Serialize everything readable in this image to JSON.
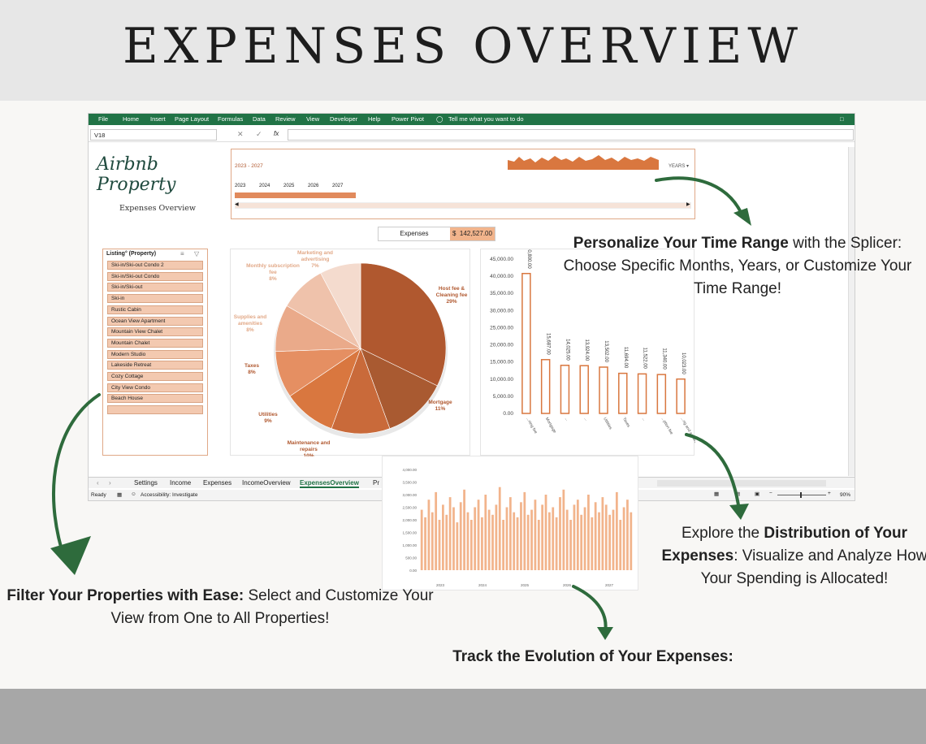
{
  "title": "EXPENSES OVERVIEW",
  "ribbon": {
    "tabs": [
      "File",
      "Home",
      "Insert",
      "Page Layout",
      "Formulas",
      "Data",
      "Review",
      "View",
      "Developer",
      "Help",
      "Power Pivot"
    ],
    "tell_me": "Tell me what you want to do"
  },
  "formula_bar": {
    "name_box": "V18",
    "fx": "fx"
  },
  "logo": {
    "title": "Airbnb Property",
    "subtitle": "Expenses Overview"
  },
  "timeline": {
    "range_label": "2023 - 2027",
    "unit_dropdown": "YEARS",
    "years": [
      "2023",
      "2024",
      "2025",
      "2026",
      "2027"
    ]
  },
  "kpi": {
    "label": "Expenses",
    "currency": "$",
    "value": "142,527.00"
  },
  "slicer": {
    "header": "Listing° (Property)",
    "items": [
      "Ski-in/Ski-out Condo 2",
      "Ski-in/Ski-out Condo",
      "Ski-in/Ski-out",
      "Ski-in",
      "Rustic Cabin",
      "Ocean View Apartment",
      "Mountain View Chalet",
      "Mountain Chalet",
      "Modern Studio",
      "Lakeside Retreat",
      "Cozy Cottage",
      "City View Condo",
      "Beach House",
      ""
    ]
  },
  "colors": {
    "accent": "#c96a3a",
    "bar_fill": "#f2b48c",
    "excel_green": "#217346",
    "arrow_green": "#2e6b3c"
  },
  "pie_chart": {
    "type": "pie",
    "slices": [
      {
        "label": "Host fee & Cleaning fee",
        "pct": "29%",
        "value": 29,
        "color": "#b0582f"
      },
      {
        "label": "Mortgage",
        "pct": "11%",
        "value": 11,
        "color": "#a95a31"
      },
      {
        "label": "Maintenance and repairs",
        "pct": "10%",
        "value": 10,
        "color": "#c96a3a"
      },
      {
        "label": "Utilities",
        "pct": "9%",
        "value": 9,
        "color": "#d9773f"
      },
      {
        "label": "Taxes",
        "pct": "8%",
        "value": 8,
        "color": "#e58f62"
      },
      {
        "label": "Supplies and amenities",
        "pct": "8%",
        "value": 8,
        "color": "#eaaa8a"
      },
      {
        "label": "Monthly subscription fee",
        "pct": "8%",
        "value": 8,
        "color": "#efc2ab"
      },
      {
        "label": "Marketing and advertising",
        "pct": "7%",
        "value": 7,
        "color": "#f4dbce"
      }
    ]
  },
  "chart_data": {
    "type": "bar",
    "ylim": [
      0,
      45000
    ],
    "y_ticks": [
      "45,000.00",
      "40,000.00",
      "35,000.00",
      "30,000.00",
      "25,000.00",
      "20,000.00",
      "15,000.00",
      "10,000.00",
      "5,000.00",
      "0.00"
    ],
    "values": [
      40800,
      15687,
      14025,
      13924,
      13502,
      11694,
      11522,
      11340,
      10023
    ],
    "value_labels": [
      "40,800.00",
      "15,687.00",
      "14,025.00",
      "13,924.00",
      "13,502.00",
      "11,694.00",
      "11,522.00",
      "11,340.00",
      "10,023.00"
    ],
    "categories": [
      "...ning fee",
      "Mortgage",
      "...",
      "...",
      "Utilities",
      "Taxes",
      "...",
      "...ption fee",
      "...ng and advertising"
    ]
  },
  "sheet_tabs": [
    "Settings",
    "Income",
    "Expenses",
    "IncomeOverview",
    "ExpensesOverview",
    "Pr"
  ],
  "status": {
    "ready": "Ready",
    "accessibility": "Accessibility: Investigate",
    "zoom": "90%"
  },
  "trend_chart": {
    "y_ticks": [
      "4,000.00",
      "3,500.00",
      "3,000.00",
      "2,500.00",
      "2,000.00",
      "1,500.00",
      "1,000.00",
      "500.00",
      "0.00"
    ],
    "years": [
      "2023",
      "2024",
      "2025",
      "2026",
      "2027"
    ]
  },
  "captions": {
    "time_range": {
      "bold": "Personalize Your Time Range",
      "rest": " with the Splicer: Choose Specific Months, Years, or Customize Your Time Range!"
    },
    "distribution": {
      "pre": "Explore the ",
      "bold": "Distribution of Your Expenses",
      "rest": ": Visualize and Analyze How Your Spending is Allocated!"
    },
    "filter": {
      "bold": "Filter Your Properties with Ease:",
      "rest": " Select and Customize Your View from One to All Properties!"
    },
    "evolution": {
      "bold": "Track the Evolution of Your Expenses:"
    }
  }
}
